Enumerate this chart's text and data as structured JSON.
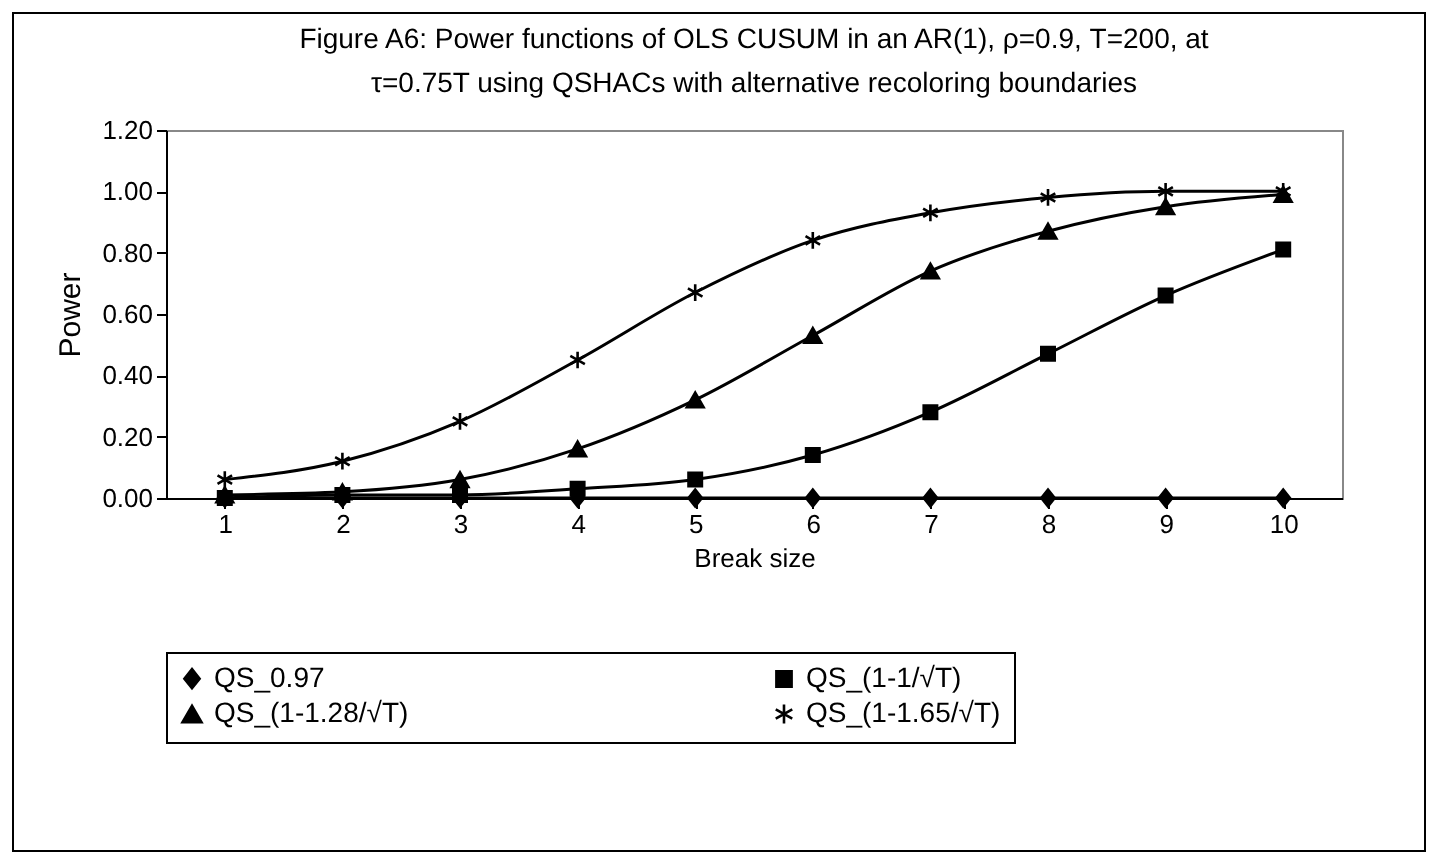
{
  "chart_data": {
    "type": "line",
    "title": "Figure A6: Power functions of OLS CUSUM in an AR(1),  ρ=0.9, T=200, at\nτ=0.75T using QSHACs with alternative recoloring boundaries",
    "xlabel": "Break size",
    "ylabel": "Power",
    "categories": [
      "1",
      "2",
      "3",
      "4",
      "5",
      "6",
      "7",
      "8",
      "9",
      "10"
    ],
    "ylim": [
      0,
      1.2
    ],
    "yticks": [
      {
        "value": 0,
        "label": "0.00"
      },
      {
        "value": 0.2,
        "label": "0.20"
      },
      {
        "value": 0.4,
        "label": "0.40"
      },
      {
        "value": 0.6,
        "label": "0.60"
      },
      {
        "value": 0.8,
        "label": "0.80"
      },
      {
        "value": 1,
        "label": "1.00"
      },
      {
        "value": 1.2,
        "label": "1.20"
      }
    ],
    "grid": false,
    "legend": "bottom",
    "line_style": "solid",
    "series": [
      {
        "name": "QS_0.97",
        "color": "#000000",
        "marker": "diamond",
        "values": [
          0,
          0,
          0,
          0,
          0,
          0,
          0,
          0,
          0,
          0
        ]
      },
      {
        "name": "QS_(1-1/√T)",
        "color": "#000000",
        "marker": "square",
        "values": [
          0.0,
          0.01,
          0.01,
          0.03,
          0.06,
          0.14,
          0.28,
          0.47,
          0.66,
          0.81
        ]
      },
      {
        "name": "QS_(1-1.28/√T)",
        "color": "#000000",
        "marker": "triangle",
        "values": [
          0.01,
          0.02,
          0.06,
          0.16,
          0.32,
          0.53,
          0.74,
          0.87,
          0.95,
          0.99
        ]
      },
      {
        "name": "QS_(1-1.65/√T)",
        "color": "#000000",
        "marker": "cross",
        "values": [
          0.06,
          0.12,
          0.25,
          0.45,
          0.67,
          0.84,
          0.93,
          0.98,
          1.0,
          1.0
        ]
      }
    ]
  }
}
